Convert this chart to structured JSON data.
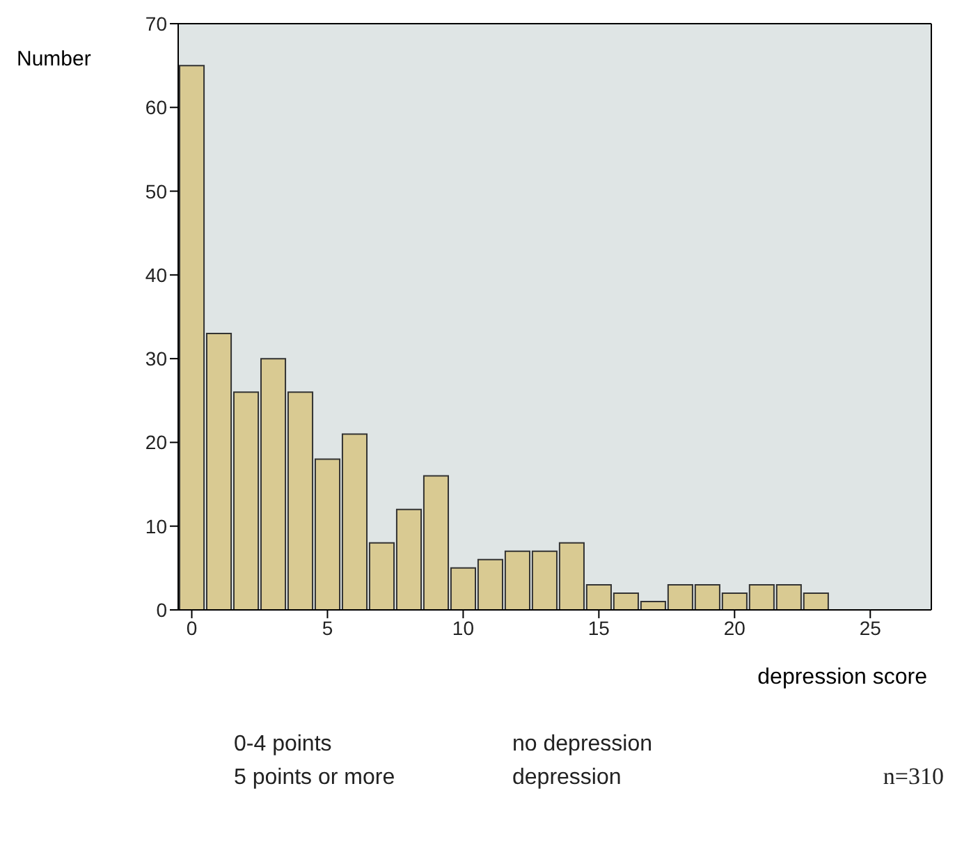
{
  "chart_data": {
    "type": "histogram",
    "ylabel": "Number",
    "xlabel": "depression score",
    "bins": [
      -0.5,
      0.5,
      1.5,
      2.5,
      3.5,
      4.5,
      5.5,
      6.5,
      7.5,
      8.5,
      9.5,
      10.5,
      11.5,
      12.5,
      13.5,
      14.5,
      15.5,
      16.5,
      17.5,
      18.5,
      19.5,
      20.5,
      21.5,
      22.5,
      23.5
    ],
    "values": [
      65,
      33,
      26,
      30,
      26,
      18,
      21,
      8,
      12,
      16,
      5,
      6,
      7,
      7,
      8,
      3,
      2,
      1,
      3,
      3,
      2,
      3,
      3,
      2
    ],
    "color": "#d9ca92",
    "xlim": [
      -0.5,
      27.25
    ],
    "xticks": [
      0,
      5,
      10,
      15,
      20,
      25
    ],
    "ylim": [
      0,
      70
    ],
    "yticks": [
      0,
      10,
      20,
      30,
      40,
      50,
      60,
      70
    ],
    "annotations": [
      "0-4 points",
      "no depression",
      "5 points or more",
      "depression",
      "n=310"
    ]
  }
}
